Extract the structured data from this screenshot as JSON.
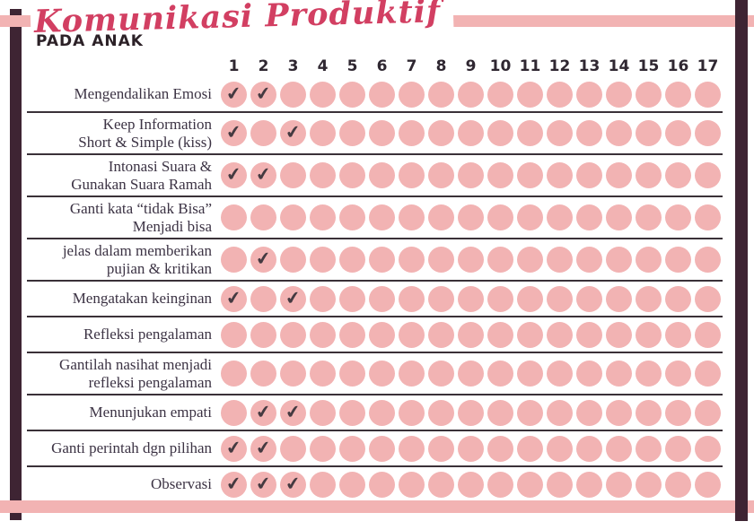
{
  "page": {
    "title_script": "Komunikasi Produktif",
    "title_sub": "PADA ANAK"
  },
  "tracker": {
    "columns": [
      "1",
      "2",
      "3",
      "4",
      "5",
      "6",
      "7",
      "8",
      "9",
      "10",
      "11",
      "12",
      "13",
      "14",
      "15",
      "16",
      "17"
    ],
    "check_glyph": "✔",
    "rows": [
      {
        "label_lines": [
          "Mengendalikan Emosi"
        ],
        "checked_columns": [
          1,
          2
        ]
      },
      {
        "label_lines": [
          "Keep Information",
          "Short & Simple (kiss)"
        ],
        "checked_columns": [
          1,
          3
        ]
      },
      {
        "label_lines": [
          "Intonasi Suara &",
          "Gunakan Suara Ramah"
        ],
        "checked_columns": [
          1,
          2
        ]
      },
      {
        "label_lines": [
          "Ganti kata “tidak Bisa”",
          "Menjadi bisa"
        ],
        "checked_columns": []
      },
      {
        "label_lines": [
          "jelas dalam memberikan",
          "pujian & kritikan"
        ],
        "checked_columns": [
          2
        ]
      },
      {
        "label_lines": [
          "Mengatakan keinginan"
        ],
        "checked_columns": [
          1,
          3
        ]
      },
      {
        "label_lines": [
          "Refleksi pengalaman"
        ],
        "checked_columns": []
      },
      {
        "label_lines": [
          "Gantilah nasihat menjadi",
          "refleksi pengalaman"
        ],
        "checked_columns": []
      },
      {
        "label_lines": [
          "Menunjukan empati"
        ],
        "checked_columns": [
          2,
          3
        ]
      },
      {
        "label_lines": [
          "Ganti perintah dgn pilihan"
        ],
        "checked_columns": [
          1,
          2
        ]
      },
      {
        "label_lines": [
          "Observasi"
        ],
        "checked_columns": [
          1,
          2,
          3
        ]
      }
    ]
  },
  "colors": {
    "accent_pink": "#F2B3B3",
    "bar_dark": "#3E2433",
    "title_crimson": "#D23F62",
    "ink": "#3C3344",
    "line": "#3A3138",
    "check": "#453A41"
  }
}
